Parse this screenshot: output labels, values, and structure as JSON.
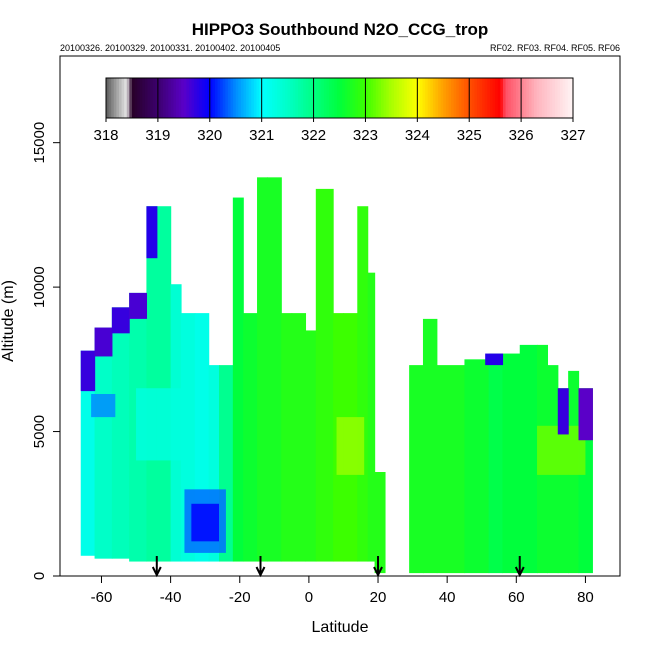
{
  "chart_data": {
    "type": "heatmap",
    "title": "HIPPO3 Southbound N2O_CCG_trop",
    "subtitle_left": "20100326. 20100329. 20100331. 20100402. 20100405",
    "subtitle_right": "RF02. RF03. RF04. RF05. RF06",
    "xlabel": "Latitude",
    "ylabel": "Altitude (m)",
    "xlim": [
      -72,
      90
    ],
    "ylim": [
      0,
      18000
    ],
    "x_ticks": [
      -60,
      -40,
      -20,
      0,
      20,
      40,
      60,
      80
    ],
    "x_tick_labels": [
      "-60",
      "-40",
      "-20",
      "0",
      "20",
      "40",
      "60",
      "80"
    ],
    "y_ticks": [
      0,
      5000,
      10000,
      15000
    ],
    "y_tick_labels": [
      "0",
      "5000",
      "10000",
      "15000"
    ],
    "colorbar": {
      "min": 318,
      "max": 327,
      "ticks": [
        318,
        319,
        320,
        321,
        322,
        323,
        324,
        325,
        326,
        327
      ],
      "tick_labels": [
        "318",
        "319",
        "320",
        "321",
        "322",
        "323",
        "324",
        "325",
        "326",
        "327"
      ]
    },
    "flight_markers_lat": [
      -44,
      -14,
      20,
      61
    ],
    "columns": [
      {
        "lat0": -66,
        "lat1": -62,
        "top": 7800,
        "bottom": 700,
        "value": 321.2
      },
      {
        "lat0": -62,
        "lat1": -57,
        "top": 8600,
        "bottom": 600,
        "value": 321.5
      },
      {
        "lat0": -57,
        "lat1": -52,
        "top": 9300,
        "bottom": 600,
        "value": 321.6
      },
      {
        "lat0": -52,
        "lat1": -47,
        "top": 9800,
        "bottom": 500,
        "value": 321.7
      },
      {
        "lat0": -47,
        "lat1": -44,
        "top": 12800,
        "bottom": 500,
        "value": 321.8
      },
      {
        "lat0": -44,
        "lat1": -40,
        "top": 12800,
        "bottom": 500,
        "value": 321.8
      },
      {
        "lat0": -40,
        "lat1": -37,
        "top": 10100,
        "bottom": 500,
        "value": 321.4
      },
      {
        "lat0": -37,
        "lat1": -33,
        "top": 9100,
        "bottom": 500,
        "value": 321.3
      },
      {
        "lat0": -33,
        "lat1": -29,
        "top": 9100,
        "bottom": 500,
        "value": 321.2
      },
      {
        "lat0": -29,
        "lat1": -26,
        "top": 7300,
        "bottom": 500,
        "value": 321.3
      },
      {
        "lat0": -26,
        "lat1": -22,
        "top": 7300,
        "bottom": 500,
        "value": 321.9
      },
      {
        "lat0": -22,
        "lat1": -19,
        "top": 13100,
        "bottom": 500,
        "value": 322.5
      },
      {
        "lat0": -19,
        "lat1": -15,
        "top": 9100,
        "bottom": 500,
        "value": 322.6
      },
      {
        "lat0": -15,
        "lat1": -12,
        "top": 13800,
        "bottom": 500,
        "value": 322.7
      },
      {
        "lat0": -12,
        "lat1": -8,
        "top": 13800,
        "bottom": 500,
        "value": 322.7
      },
      {
        "lat0": -8,
        "lat1": -5,
        "top": 9100,
        "bottom": 500,
        "value": 322.8
      },
      {
        "lat0": -5,
        "lat1": -1,
        "top": 9100,
        "bottom": 500,
        "value": 322.8
      },
      {
        "lat0": -1,
        "lat1": 2,
        "top": 8500,
        "bottom": 500,
        "value": 322.8
      },
      {
        "lat0": 2,
        "lat1": 7,
        "top": 13400,
        "bottom": 500,
        "value": 322.9
      },
      {
        "lat0": 7,
        "lat1": 10,
        "top": 9100,
        "bottom": 500,
        "value": 323.0
      },
      {
        "lat0": 10,
        "lat1": 14,
        "top": 9100,
        "bottom": 500,
        "value": 323.0
      },
      {
        "lat0": 14,
        "lat1": 17,
        "top": 12800,
        "bottom": 500,
        "value": 322.9
      },
      {
        "lat0": 17,
        "lat1": 19,
        "top": 10500,
        "bottom": 500,
        "value": 322.8
      },
      {
        "lat0": 19,
        "lat1": 22,
        "top": 3600,
        "bottom": 100,
        "value": 322.8
      },
      {
        "lat0": 29,
        "lat1": 33,
        "top": 7300,
        "bottom": 100,
        "value": 322.7
      },
      {
        "lat0": 33,
        "lat1": 37,
        "top": 8900,
        "bottom": 100,
        "value": 322.7
      },
      {
        "lat0": 37,
        "lat1": 45,
        "top": 7300,
        "bottom": 100,
        "value": 322.7
      },
      {
        "lat0": 45,
        "lat1": 52,
        "top": 7500,
        "bottom": 100,
        "value": 322.6
      },
      {
        "lat0": 52,
        "lat1": 56,
        "top": 7700,
        "bottom": 100,
        "value": 322.4
      },
      {
        "lat0": 56,
        "lat1": 61,
        "top": 7700,
        "bottom": 100,
        "value": 322.5
      },
      {
        "lat0": 61,
        "lat1": 66,
        "top": 8000,
        "bottom": 100,
        "value": 322.5
      },
      {
        "lat0": 66,
        "lat1": 69,
        "top": 8000,
        "bottom": 100,
        "value": 322.6
      },
      {
        "lat0": 69,
        "lat1": 72,
        "top": 7300,
        "bottom": 100,
        "value": 322.6
      },
      {
        "lat0": 72,
        "lat1": 75,
        "top": 6500,
        "bottom": 100,
        "value": 322.6
      },
      {
        "lat0": 75,
        "lat1": 78,
        "top": 7100,
        "bottom": 100,
        "value": 322.6
      },
      {
        "lat0": 78,
        "lat1": 82,
        "top": 6500,
        "bottom": 100,
        "value": 322.5
      }
    ],
    "patches": [
      {
        "lat0": -36,
        "lat1": -24,
        "top": 3000,
        "bottom": 800,
        "value": 320.4
      },
      {
        "lat0": -34,
        "lat1": -26,
        "top": 2500,
        "bottom": 1200,
        "value": 320.0
      },
      {
        "lat0": -50,
        "lat1": -36,
        "top": 6500,
        "bottom": 4000,
        "value": 321.3
      },
      {
        "lat0": -63,
        "lat1": -56,
        "top": 6300,
        "bottom": 5500,
        "value": 320.5
      },
      {
        "lat0": 8,
        "lat1": 16,
        "top": 5500,
        "bottom": 3500,
        "value": 323.4
      },
      {
        "lat0": 66,
        "lat1": 80,
        "top": 5200,
        "bottom": 3500,
        "value": 323.2
      }
    ],
    "edges": [
      {
        "lat0": -66,
        "lat1": -62,
        "top": 7800,
        "thickness": 1400,
        "value": 319.7
      },
      {
        "lat0": -62,
        "lat1": -57,
        "top": 8600,
        "thickness": 1000,
        "value": 319.6
      },
      {
        "lat0": -57,
        "lat1": -52,
        "top": 9300,
        "thickness": 900,
        "value": 319.7
      },
      {
        "lat0": -52,
        "lat1": -47,
        "top": 9800,
        "thickness": 900,
        "value": 319.6
      },
      {
        "lat0": -47,
        "lat1": -44,
        "top": 12800,
        "thickness": 1800,
        "value": 319.8
      },
      {
        "lat0": 51,
        "lat1": 56,
        "top": 7700,
        "thickness": 400,
        "value": 319.8
      },
      {
        "lat0": 72,
        "lat1": 75,
        "top": 6500,
        "thickness": 1600,
        "value": 319.7
      },
      {
        "lat0": 78,
        "lat1": 82,
        "top": 6500,
        "thickness": 1800,
        "value": 319.5
      }
    ]
  }
}
